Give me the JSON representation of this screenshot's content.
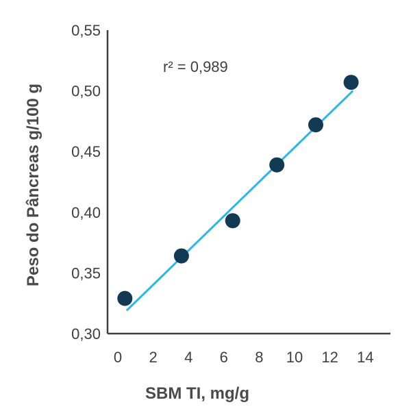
{
  "chart_data": {
    "type": "scatter",
    "xlabel": "SBM TI, mg/g",
    "ylabel": "Peso do Pâncreas g/100 g",
    "annotation": "r² = 0,989",
    "xlim": [
      0,
      15
    ],
    "ylim": [
      0.3,
      0.55
    ],
    "x_ticks": [
      0,
      2,
      4,
      6,
      8,
      10,
      12,
      14
    ],
    "x_tick_labels": [
      "0",
      "2",
      "4",
      "6",
      "8",
      "10",
      "12",
      "14"
    ],
    "y_ticks": [
      0.3,
      0.35,
      0.4,
      0.45,
      0.5,
      0.55
    ],
    "y_tick_labels": [
      "0,30",
      "0,35",
      "0,40",
      "0,45",
      "0,50",
      "0,55"
    ],
    "points": [
      {
        "x": 0.4,
        "y": 0.329
      },
      {
        "x": 3.6,
        "y": 0.364
      },
      {
        "x": 6.5,
        "y": 0.393
      },
      {
        "x": 9.0,
        "y": 0.439
      },
      {
        "x": 11.2,
        "y": 0.472
      },
      {
        "x": 13.2,
        "y": 0.507
      }
    ],
    "trendline": {
      "x": [
        0.5,
        13.3
      ],
      "y": [
        0.319,
        0.5
      ]
    },
    "grid": false,
    "colors": {
      "point": "#123a55",
      "trendline": "#29b6e8",
      "axis": "#3f3f3f"
    }
  }
}
